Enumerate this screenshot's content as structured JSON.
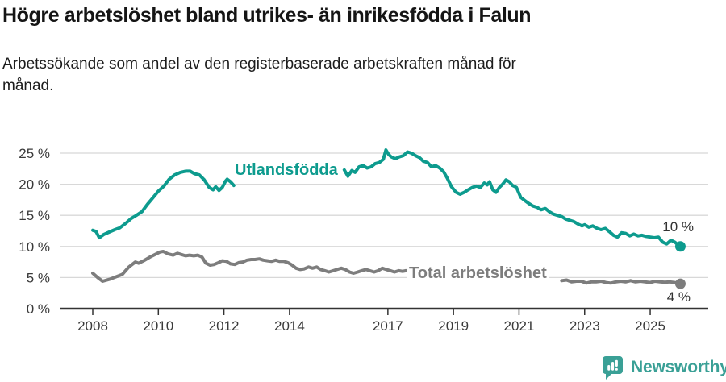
{
  "header": {
    "title": "Högre arbetslöshet bland utrikes- än inrikesfödda i Falun",
    "subtitle_lines": [
      "Arbetssökande som andel av den registerbaserade arbetskraften månad för",
      "månad."
    ]
  },
  "footer": {
    "brand": "Newsworthy"
  },
  "colors": {
    "teal": "#0d9b8e",
    "gray": "#7d7d7d",
    "grid": "#d8d8d8",
    "axis": "#333333",
    "tick_label": "#3a3a3a",
    "logo_teal": "#3aa096",
    "background": "#ffffff"
  },
  "chart_data": {
    "type": "line",
    "title": "Högre arbetslöshet bland utrikes- än inrikesfödda i Falun",
    "subtitle": "Arbetssökande som andel av den registerbaserade arbetskraften månad för månad.",
    "unit": "%",
    "grid": true,
    "x_axis": {
      "range": [
        2007.0,
        2026.8
      ],
      "ticks": [
        2008,
        2010,
        2012,
        2014,
        2017,
        2019,
        2021,
        2023,
        2025
      ],
      "tick_labels": [
        "2008",
        "2010",
        "2012",
        "2014",
        "2017",
        "2019",
        "2021",
        "2023",
        "2025"
      ]
    },
    "y_axis": {
      "range": [
        0,
        25
      ],
      "ticks": [
        0,
        5,
        10,
        15,
        20,
        25
      ],
      "tick_labels": [
        "0 %",
        "5 %",
        "10 %",
        "15 %",
        "20 %",
        "25 %"
      ]
    },
    "series": [
      {
        "name": "Utlandsfödda",
        "color": "#0d9b8e",
        "end_value": 10,
        "end_label": "10 %",
        "label_on_line": true,
        "segments": [
          [
            [
              2008.0,
              12.6
            ],
            [
              2008.1,
              12.4
            ],
            [
              2008.2,
              11.4
            ],
            [
              2008.33,
              11.9
            ],
            [
              2008.5,
              12.3
            ],
            [
              2008.67,
              12.7
            ],
            [
              2008.83,
              13.0
            ],
            [
              2009.0,
              13.7
            ],
            [
              2009.17,
              14.5
            ],
            [
              2009.33,
              15.0
            ],
            [
              2009.5,
              15.6
            ],
            [
              2009.67,
              16.8
            ],
            [
              2009.83,
              17.8
            ],
            [
              2010.0,
              18.9
            ],
            [
              2010.17,
              19.7
            ],
            [
              2010.33,
              20.8
            ],
            [
              2010.5,
              21.5
            ],
            [
              2010.67,
              21.9
            ],
            [
              2010.83,
              22.1
            ],
            [
              2010.97,
              22.1
            ],
            [
              2011.1,
              21.7
            ],
            [
              2011.25,
              21.5
            ],
            [
              2011.4,
              20.7
            ],
            [
              2011.55,
              19.5
            ],
            [
              2011.67,
              19.1
            ],
            [
              2011.75,
              19.6
            ],
            [
              2011.85,
              19.0
            ],
            [
              2011.95,
              19.5
            ],
            [
              2012.05,
              20.5
            ],
            [
              2012.1,
              20.8
            ],
            [
              2012.2,
              20.4
            ],
            [
              2012.3,
              19.8
            ]
          ],
          [
            [
              2015.67,
              22.3
            ],
            [
              2015.78,
              21.3
            ],
            [
              2015.9,
              22.2
            ],
            [
              2016.0,
              21.9
            ],
            [
              2016.12,
              22.8
            ],
            [
              2016.24,
              23.0
            ],
            [
              2016.37,
              22.6
            ],
            [
              2016.49,
              22.8
            ],
            [
              2016.61,
              23.3
            ],
            [
              2016.74,
              23.5
            ],
            [
              2016.86,
              24.0
            ],
            [
              2016.94,
              25.5
            ],
            [
              2017.02,
              24.8
            ],
            [
              2017.1,
              24.4
            ],
            [
              2017.23,
              24.1
            ],
            [
              2017.35,
              24.4
            ],
            [
              2017.47,
              24.6
            ],
            [
              2017.6,
              25.2
            ],
            [
              2017.72,
              25.0
            ],
            [
              2017.84,
              24.6
            ],
            [
              2017.96,
              24.3
            ],
            [
              2018.08,
              23.7
            ],
            [
              2018.21,
              23.5
            ],
            [
              2018.33,
              22.8
            ],
            [
              2018.45,
              23.0
            ],
            [
              2018.58,
              22.6
            ],
            [
              2018.7,
              22.0
            ],
            [
              2018.82,
              20.9
            ],
            [
              2018.94,
              19.6
            ],
            [
              2019.08,
              18.7
            ],
            [
              2019.2,
              18.4
            ],
            [
              2019.33,
              18.7
            ],
            [
              2019.45,
              19.1
            ],
            [
              2019.58,
              19.5
            ],
            [
              2019.7,
              19.7
            ],
            [
              2019.82,
              19.5
            ],
            [
              2019.94,
              20.2
            ],
            [
              2020.03,
              19.9
            ],
            [
              2020.1,
              20.4
            ],
            [
              2020.2,
              19.1
            ],
            [
              2020.3,
              18.7
            ],
            [
              2020.4,
              19.5
            ],
            [
              2020.5,
              20.0
            ],
            [
              2020.6,
              20.7
            ],
            [
              2020.7,
              20.4
            ],
            [
              2020.8,
              19.8
            ],
            [
              2020.92,
              19.5
            ],
            [
              2021.05,
              17.9
            ],
            [
              2021.17,
              17.4
            ],
            [
              2021.3,
              16.9
            ],
            [
              2021.42,
              16.5
            ],
            [
              2021.55,
              16.3
            ],
            [
              2021.67,
              15.9
            ],
            [
              2021.8,
              16.1
            ],
            [
              2021.92,
              15.6
            ],
            [
              2022.05,
              15.2
            ],
            [
              2022.17,
              15.0
            ],
            [
              2022.3,
              14.8
            ],
            [
              2022.42,
              14.4
            ],
            [
              2022.55,
              14.2
            ],
            [
              2022.67,
              14.0
            ],
            [
              2022.8,
              13.6
            ],
            [
              2022.92,
              13.3
            ],
            [
              2023.0,
              13.5
            ],
            [
              2023.13,
              13.1
            ],
            [
              2023.25,
              13.3
            ],
            [
              2023.38,
              12.9
            ],
            [
              2023.5,
              12.7
            ],
            [
              2023.63,
              12.9
            ],
            [
              2023.75,
              12.4
            ],
            [
              2023.88,
              11.8
            ],
            [
              2024.0,
              11.5
            ],
            [
              2024.13,
              12.2
            ],
            [
              2024.25,
              12.1
            ],
            [
              2024.38,
              11.7
            ],
            [
              2024.5,
              12.0
            ],
            [
              2024.63,
              11.7
            ],
            [
              2024.75,
              11.8
            ],
            [
              2024.88,
              11.6
            ],
            [
              2025.0,
              11.5
            ],
            [
              2025.13,
              11.4
            ],
            [
              2025.25,
              11.5
            ],
            [
              2025.38,
              10.7
            ],
            [
              2025.5,
              10.4
            ],
            [
              2025.63,
              11.0
            ],
            [
              2025.75,
              10.7
            ],
            [
              2025.92,
              10.0
            ]
          ]
        ]
      },
      {
        "name": "Total arbetslöshet",
        "color": "#7d7d7d",
        "end_value": 4,
        "end_label": "4 %",
        "label_on_line": true,
        "segments": [
          [
            [
              2008.0,
              5.7
            ],
            [
              2008.15,
              5.0
            ],
            [
              2008.3,
              4.4
            ],
            [
              2008.5,
              4.7
            ],
            [
              2008.7,
              5.1
            ],
            [
              2008.9,
              5.5
            ],
            [
              2009.1,
              6.7
            ],
            [
              2009.3,
              7.5
            ],
            [
              2009.4,
              7.3
            ],
            [
              2009.55,
              7.7
            ],
            [
              2009.75,
              8.3
            ],
            [
              2009.9,
              8.7
            ],
            [
              2010.05,
              9.1
            ],
            [
              2010.15,
              9.2
            ],
            [
              2010.3,
              8.8
            ],
            [
              2010.45,
              8.6
            ],
            [
              2010.58,
              8.9
            ],
            [
              2010.7,
              8.7
            ],
            [
              2010.83,
              8.5
            ],
            [
              2010.95,
              8.6
            ],
            [
              2011.08,
              8.5
            ],
            [
              2011.2,
              8.6
            ],
            [
              2011.33,
              8.3
            ],
            [
              2011.45,
              7.3
            ],
            [
              2011.58,
              7.0
            ],
            [
              2011.7,
              7.1
            ],
            [
              2011.83,
              7.4
            ],
            [
              2011.95,
              7.7
            ],
            [
              2012.08,
              7.6
            ],
            [
              2012.2,
              7.2
            ],
            [
              2012.33,
              7.1
            ],
            [
              2012.45,
              7.4
            ],
            [
              2012.58,
              7.5
            ],
            [
              2012.7,
              7.8
            ],
            [
              2012.83,
              7.9
            ],
            [
              2012.95,
              7.9
            ],
            [
              2013.08,
              8.0
            ],
            [
              2013.2,
              7.8
            ],
            [
              2013.33,
              7.7
            ],
            [
              2013.45,
              7.6
            ],
            [
              2013.58,
              7.8
            ],
            [
              2013.7,
              7.6
            ],
            [
              2013.83,
              7.6
            ],
            [
              2013.95,
              7.4
            ],
            [
              2014.08,
              7.0
            ],
            [
              2014.2,
              6.5
            ],
            [
              2014.33,
              6.3
            ],
            [
              2014.45,
              6.4
            ],
            [
              2014.58,
              6.7
            ],
            [
              2014.7,
              6.5
            ],
            [
              2014.83,
              6.7
            ],
            [
              2014.95,
              6.3
            ],
            [
              2015.08,
              6.1
            ],
            [
              2015.2,
              5.9
            ],
            [
              2015.33,
              6.1
            ],
            [
              2015.45,
              6.3
            ],
            [
              2015.58,
              6.5
            ],
            [
              2015.7,
              6.3
            ],
            [
              2015.83,
              5.9
            ],
            [
              2015.95,
              5.7
            ],
            [
              2016.08,
              5.9
            ],
            [
              2016.2,
              6.1
            ],
            [
              2016.33,
              6.3
            ],
            [
              2016.45,
              6.1
            ],
            [
              2016.58,
              5.9
            ],
            [
              2016.7,
              6.1
            ],
            [
              2016.83,
              6.5
            ],
            [
              2016.95,
              6.3
            ],
            [
              2017.08,
              6.1
            ],
            [
              2017.2,
              5.9
            ],
            [
              2017.33,
              6.1
            ],
            [
              2017.45,
              6.0
            ],
            [
              2017.55,
              6.1
            ]
          ],
          [
            [
              2022.3,
              4.5
            ],
            [
              2022.45,
              4.6
            ],
            [
              2022.6,
              4.3
            ],
            [
              2022.75,
              4.4
            ],
            [
              2022.9,
              4.4
            ],
            [
              2023.05,
              4.1
            ],
            [
              2023.2,
              4.3
            ],
            [
              2023.35,
              4.3
            ],
            [
              2023.5,
              4.4
            ],
            [
              2023.65,
              4.2
            ],
            [
              2023.8,
              4.1
            ],
            [
              2023.95,
              4.3
            ],
            [
              2024.1,
              4.4
            ],
            [
              2024.25,
              4.3
            ],
            [
              2024.4,
              4.5
            ],
            [
              2024.55,
              4.3
            ],
            [
              2024.7,
              4.4
            ],
            [
              2024.85,
              4.3
            ],
            [
              2025.0,
              4.2
            ],
            [
              2025.15,
              4.4
            ],
            [
              2025.3,
              4.3
            ],
            [
              2025.45,
              4.25
            ],
            [
              2025.6,
              4.3
            ],
            [
              2025.75,
              4.2
            ],
            [
              2025.92,
              4.0
            ]
          ]
        ]
      }
    ]
  }
}
